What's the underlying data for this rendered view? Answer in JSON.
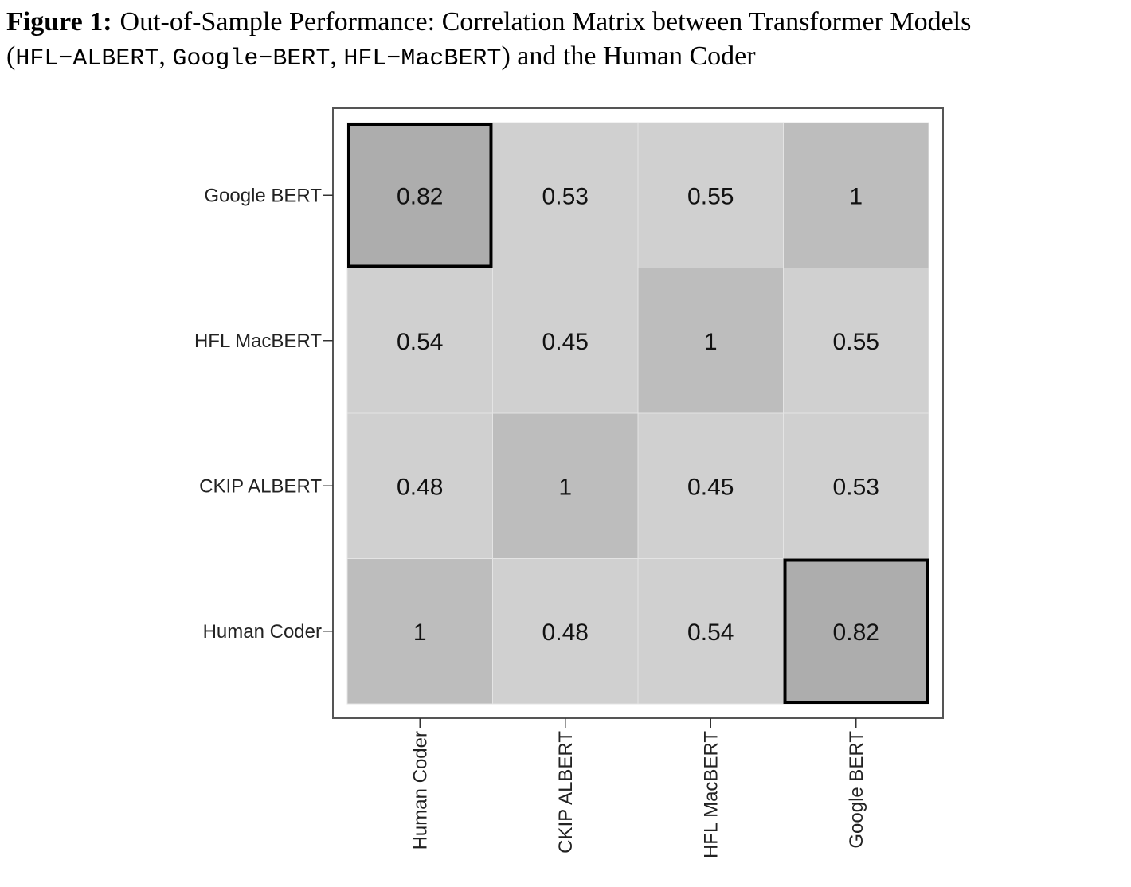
{
  "chart_data": {
    "type": "heatmap",
    "figure_label": "Figure 1:",
    "title": "Out-of-Sample Performance: Correlation Matrix between Transformer Models",
    "title_segments": [
      "(",
      "HFL−ALBERT",
      ", ",
      "Google−BERT",
      ", ",
      "HFL−MacBERT",
      ") and the Human Coder"
    ],
    "x_categories": [
      "Human Coder",
      "CKIP ALBERT",
      "HFL MacBERT",
      "Google BERT"
    ],
    "y_categories": [
      "Human Coder",
      "CKIP ALBERT",
      "HFL MacBERT",
      "Google BERT"
    ],
    "values": [
      [
        1,
        0.48,
        0.54,
        0.82
      ],
      [
        0.48,
        1,
        0.45,
        0.53
      ],
      [
        0.54,
        0.45,
        1,
        0.55
      ],
      [
        0.82,
        0.53,
        0.55,
        1
      ]
    ],
    "cell_colors": [
      [
        "#bdbdbd",
        "#d0d0d0",
        "#d0d0d0",
        "#adadad"
      ],
      [
        "#d0d0d0",
        "#bdbdbd",
        "#d0d0d0",
        "#d0d0d0"
      ],
      [
        "#d0d0d0",
        "#d0d0d0",
        "#bdbdbd",
        "#d0d0d0"
      ],
      [
        "#adadad",
        "#d0d0d0",
        "#d0d0d0",
        "#bdbdbd"
      ]
    ],
    "highlight_cells": [
      [
        0,
        3
      ],
      [
        3,
        0
      ]
    ]
  }
}
